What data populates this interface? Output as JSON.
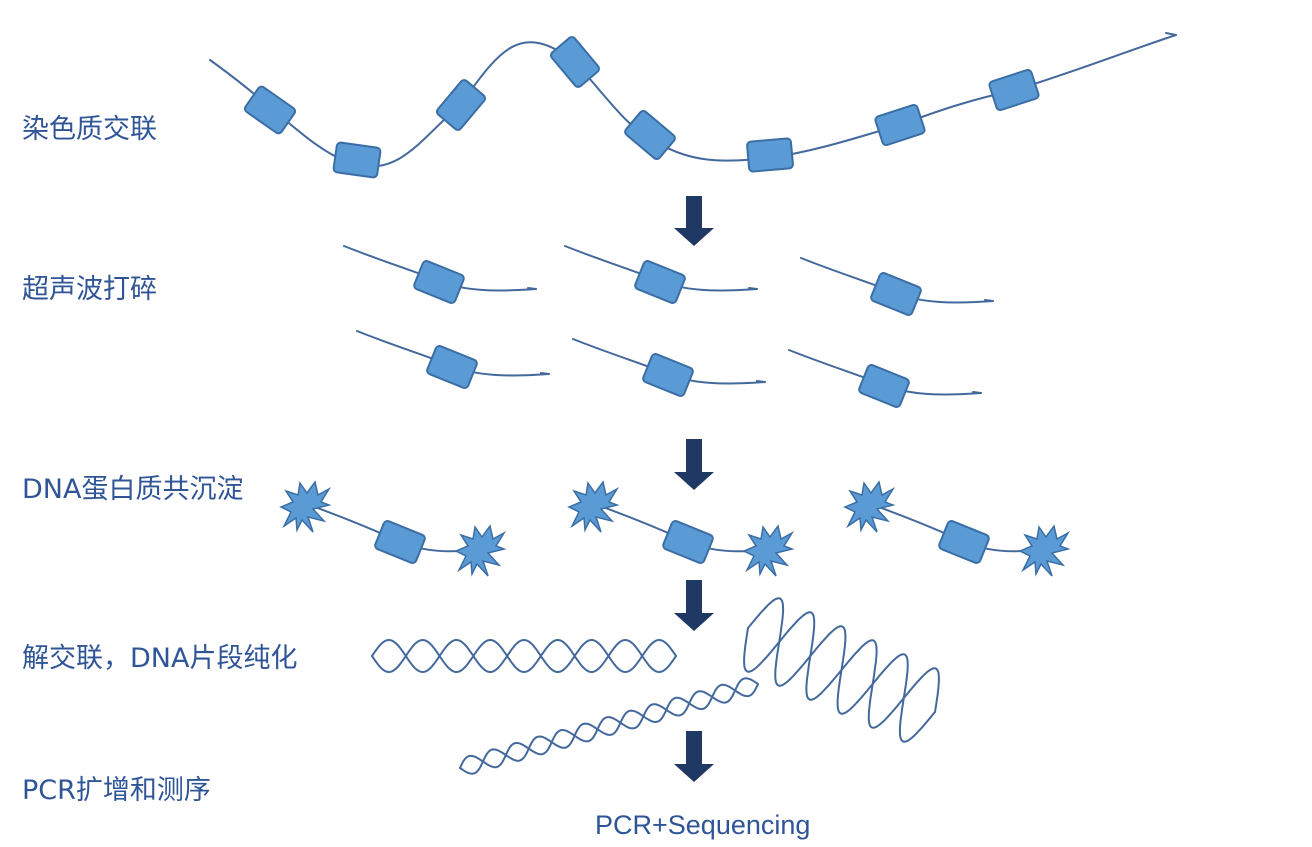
{
  "stages": [
    {
      "id": "crosslink",
      "label": "染色质交联"
    },
    {
      "id": "sonication",
      "label": "超声波打碎"
    },
    {
      "id": "coip",
      "label": "DNA蛋白质共沉淀"
    },
    {
      "id": "purify",
      "label": "解交联，DNA片段纯化"
    },
    {
      "id": "pcr",
      "label": "PCR扩增和测序"
    }
  ],
  "footer": "PCR+Sequencing",
  "colors": {
    "label": "#2f5597",
    "nucleosome_fill": "#5b9bd5",
    "nucleosome_stroke": "#3a6ea5",
    "strand": "#44699c",
    "arrow": "#1f3864"
  }
}
